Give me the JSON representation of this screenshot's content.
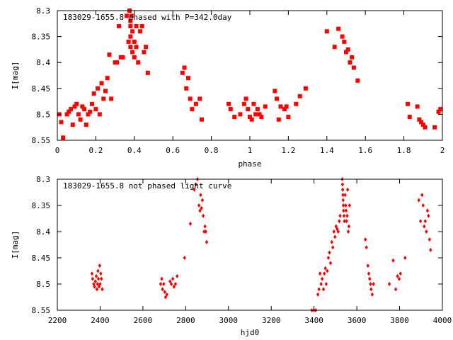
{
  "chart_data": [
    {
      "type": "scatter",
      "title": "183029-1655.8 phased with P=342.0day",
      "xlabel": "phase",
      "ylabel": "I[mag]",
      "xlim": [
        0,
        2
      ],
      "ylim": [
        8.55,
        8.3
      ],
      "y_inverted": true,
      "xticks": [
        "0",
        "0.2",
        "0.4",
        "0.6",
        "0.8",
        "1",
        "1.2",
        "1.4",
        "1.6",
        "1.8",
        "2"
      ],
      "yticks": [
        "8.3",
        "8.35",
        "8.4",
        "8.45",
        "8.5",
        "8.55"
      ],
      "marker": "filled-square",
      "color": "#ff0000",
      "grid": false,
      "points": [
        [
          0.01,
          8.5
        ],
        [
          0.02,
          8.515
        ],
        [
          0.03,
          8.545
        ],
        [
          0.05,
          8.5
        ],
        [
          0.06,
          8.495
        ],
        [
          0.07,
          8.49
        ],
        [
          0.08,
          8.52
        ],
        [
          0.09,
          8.485
        ],
        [
          0.1,
          8.48
        ],
        [
          0.11,
          8.5
        ],
        [
          0.12,
          8.51
        ],
        [
          0.13,
          8.485
        ],
        [
          0.14,
          8.49
        ],
        [
          0.15,
          8.52
        ],
        [
          0.16,
          8.5
        ],
        [
          0.17,
          8.495
        ],
        [
          0.18,
          8.48
        ],
        [
          0.19,
          8.46
        ],
        [
          0.2,
          8.49
        ],
        [
          0.21,
          8.45
        ],
        [
          0.22,
          8.5
        ],
        [
          0.23,
          8.44
        ],
        [
          0.24,
          8.47
        ],
        [
          0.25,
          8.455
        ],
        [
          0.26,
          8.43
        ],
        [
          0.27,
          8.385
        ],
        [
          0.28,
          8.47
        ],
        [
          0.3,
          8.4
        ],
        [
          0.31,
          8.4
        ],
        [
          0.32,
          8.33
        ],
        [
          0.33,
          8.39
        ],
        [
          0.34,
          8.39
        ],
        [
          0.36,
          8.31
        ],
        [
          0.37,
          8.36
        ],
        [
          0.375,
          8.3
        ],
        [
          0.38,
          8.32
        ],
        [
          0.38,
          8.33
        ],
        [
          0.38,
          8.35
        ],
        [
          0.38,
          8.37
        ],
        [
          0.385,
          8.31
        ],
        [
          0.39,
          8.34
        ],
        [
          0.39,
          8.38
        ],
        [
          0.4,
          8.36
        ],
        [
          0.4,
          8.39
        ],
        [
          0.41,
          8.37
        ],
        [
          0.41,
          8.33
        ],
        [
          0.42,
          8.4
        ],
        [
          0.43,
          8.34
        ],
        [
          0.44,
          8.33
        ],
        [
          0.45,
          8.38
        ],
        [
          0.46,
          8.37
        ],
        [
          0.47,
          8.42
        ],
        [
          0.65,
          8.42
        ],
        [
          0.66,
          8.41
        ],
        [
          0.67,
          8.45
        ],
        [
          0.68,
          8.43
        ],
        [
          0.69,
          8.47
        ],
        [
          0.7,
          8.49
        ],
        [
          0.72,
          8.48
        ],
        [
          0.74,
          8.47
        ],
        [
          0.75,
          8.51
        ],
        [
          0.89,
          8.48
        ],
        [
          0.9,
          8.49
        ],
        [
          0.92,
          8.505
        ],
        [
          0.95,
          8.5
        ],
        [
          0.97,
          8.48
        ],
        [
          0.98,
          8.47
        ],
        [
          0.99,
          8.49
        ],
        [
          1.0,
          8.505
        ],
        [
          1.01,
          8.51
        ],
        [
          1.02,
          8.48
        ],
        [
          1.03,
          8.5
        ],
        [
          1.04,
          8.49
        ],
        [
          1.05,
          8.5
        ],
        [
          1.06,
          8.505
        ],
        [
          1.08,
          8.485
        ],
        [
          1.13,
          8.455
        ],
        [
          1.14,
          8.47
        ],
        [
          1.15,
          8.51
        ],
        [
          1.16,
          8.485
        ],
        [
          1.18,
          8.49
        ],
        [
          1.19,
          8.485
        ],
        [
          1.2,
          8.505
        ],
        [
          1.24,
          8.48
        ],
        [
          1.26,
          8.465
        ],
        [
          1.29,
          8.45
        ],
        [
          1.4,
          8.34
        ],
        [
          1.44,
          8.37
        ],
        [
          1.46,
          8.335
        ],
        [
          1.48,
          8.35
        ],
        [
          1.49,
          8.36
        ],
        [
          1.5,
          8.38
        ],
        [
          1.51,
          8.375
        ],
        [
          1.52,
          8.4
        ],
        [
          1.53,
          8.39
        ],
        [
          1.54,
          8.41
        ],
        [
          1.56,
          8.435
        ],
        [
          1.82,
          8.48
        ],
        [
          1.83,
          8.505
        ],
        [
          1.87,
          8.485
        ],
        [
          1.88,
          8.51
        ],
        [
          1.89,
          8.515
        ],
        [
          1.9,
          8.52
        ],
        [
          1.91,
          8.525
        ],
        [
          1.96,
          8.525
        ],
        [
          1.98,
          8.495
        ],
        [
          1.99,
          8.49
        ]
      ]
    },
    {
      "type": "scatter",
      "title": "183029-1655.8 not phased light curve",
      "xlabel": "hjd0",
      "ylabel": "I[mag]",
      "xlim": [
        2200,
        4000
      ],
      "ylim": [
        8.55,
        8.3
      ],
      "y_inverted": true,
      "xticks": [
        "2200",
        "2400",
        "2600",
        "2800",
        "3000",
        "3200",
        "3400",
        "3600",
        "3800",
        "4000"
      ],
      "yticks": [
        "8.3",
        "8.35",
        "8.4",
        "8.45",
        "8.5",
        "8.55"
      ],
      "marker": "diamond",
      "color": "#ff0000",
      "grid": false,
      "points": [
        [
          2362,
          8.48
        ],
        [
          2365,
          8.49
        ],
        [
          2370,
          8.5
        ],
        [
          2374,
          8.505
        ],
        [
          2378,
          8.495
        ],
        [
          2382,
          8.485
        ],
        [
          2385,
          8.51
        ],
        [
          2388,
          8.5
        ],
        [
          2390,
          8.475
        ],
        [
          2392,
          8.49
        ],
        [
          2395,
          8.505
        ],
        [
          2398,
          8.465
        ],
        [
          2400,
          8.5
        ],
        [
          2403,
          8.48
        ],
        [
          2406,
          8.49
        ],
        [
          2410,
          8.51
        ],
        [
          2683,
          8.5
        ],
        [
          2688,
          8.49
        ],
        [
          2692,
          8.51
        ],
        [
          2697,
          8.5
        ],
        [
          2702,
          8.515
        ],
        [
          2706,
          8.525
        ],
        [
          2712,
          8.52
        ],
        [
          2727,
          8.495
        ],
        [
          2733,
          8.5
        ],
        [
          2740,
          8.49
        ],
        [
          2745,
          8.505
        ],
        [
          2752,
          8.5
        ],
        [
          2760,
          8.485
        ],
        [
          2795,
          8.45
        ],
        [
          2822,
          8.385
        ],
        [
          2840,
          8.32
        ],
        [
          2848,
          8.31
        ],
        [
          2855,
          8.3
        ],
        [
          2862,
          8.35
        ],
        [
          2867,
          8.36
        ],
        [
          2870,
          8.33
        ],
        [
          2874,
          8.355
        ],
        [
          2878,
          8.34
        ],
        [
          2882,
          8.37
        ],
        [
          2886,
          8.4
        ],
        [
          2890,
          8.39
        ],
        [
          2894,
          8.4
        ],
        [
          2898,
          8.42
        ],
        [
          3390,
          8.55
        ],
        [
          3400,
          8.55
        ],
        [
          3408,
          8.55
        ],
        [
          3418,
          8.52
        ],
        [
          3423,
          8.51
        ],
        [
          3428,
          8.48
        ],
        [
          3433,
          8.5
        ],
        [
          3438,
          8.49
        ],
        [
          3444,
          8.51
        ],
        [
          3448,
          8.48
        ],
        [
          3453,
          8.47
        ],
        [
          3457,
          8.5
        ],
        [
          3462,
          8.475
        ],
        [
          3467,
          8.45
        ],
        [
          3472,
          8.44
        ],
        [
          3477,
          8.46
        ],
        [
          3483,
          8.42
        ],
        [
          3488,
          8.43
        ],
        [
          3493,
          8.4
        ],
        [
          3498,
          8.41
        ],
        [
          3503,
          8.39
        ],
        [
          3508,
          8.395
        ],
        [
          3513,
          8.4
        ],
        [
          3518,
          8.38
        ],
        [
          3522,
          8.37
        ],
        [
          3532,
          8.3
        ],
        [
          3533,
          8.31
        ],
        [
          3534,
          8.32
        ],
        [
          3535,
          8.33
        ],
        [
          3536,
          8.34
        ],
        [
          3537,
          8.35
        ],
        [
          3538,
          8.36
        ],
        [
          3540,
          8.37
        ],
        [
          3542,
          8.38
        ],
        [
          3545,
          8.33
        ],
        [
          3548,
          8.35
        ],
        [
          3550,
          8.36
        ],
        [
          3552,
          8.38
        ],
        [
          3555,
          8.37
        ],
        [
          3557,
          8.32
        ],
        [
          3560,
          8.4
        ],
        [
          3563,
          8.39
        ],
        [
          3566,
          8.35
        ],
        [
          3640,
          8.415
        ],
        [
          3645,
          8.43
        ],
        [
          3652,
          8.465
        ],
        [
          3656,
          8.48
        ],
        [
          3660,
          8.49
        ],
        [
          3664,
          8.5
        ],
        [
          3667,
          8.51
        ],
        [
          3672,
          8.52
        ],
        [
          3678,
          8.5
        ],
        [
          3752,
          8.5
        ],
        [
          3770,
          8.455
        ],
        [
          3782,
          8.51
        ],
        [
          3790,
          8.485
        ],
        [
          3798,
          8.49
        ],
        [
          3804,
          8.48
        ],
        [
          3826,
          8.45
        ],
        [
          3890,
          8.34
        ],
        [
          3898,
          8.38
        ],
        [
          3905,
          8.33
        ],
        [
          3910,
          8.35
        ],
        [
          3915,
          8.39
        ],
        [
          3920,
          8.38
        ],
        [
          3925,
          8.4
        ],
        [
          3930,
          8.36
        ],
        [
          3935,
          8.37
        ],
        [
          3940,
          8.415
        ],
        [
          3945,
          8.435
        ]
      ]
    }
  ]
}
